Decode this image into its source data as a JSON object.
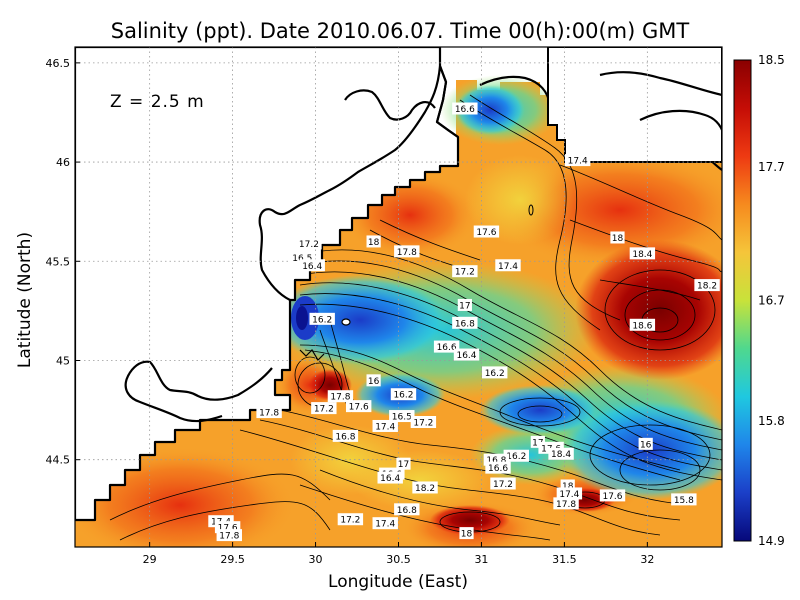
{
  "chart_data": {
    "type": "heatmap",
    "title": "Salinity (ppt). Date 2010.06.07. Time 00(h):00(m) GMT",
    "xlabel": "Longitude (East)",
    "ylabel": "Latitude (North)",
    "annotation": "Z = 2.5 m",
    "xlim": [
      28.55,
      32.45
    ],
    "ylim": [
      44.06,
      46.58
    ],
    "x_ticks": [
      "29",
      "29.5",
      "30",
      "30.5",
      "31",
      "31.5",
      "32"
    ],
    "x_tick_values": [
      29,
      29.5,
      30,
      30.5,
      31,
      31.5,
      32
    ],
    "y_ticks": [
      "44.5",
      "45",
      "45.5",
      "46",
      "46.5"
    ],
    "y_tick_values": [
      44.5,
      45,
      45.5,
      46,
      46.5
    ],
    "grid": true,
    "colorbar": {
      "ticks": [
        "18.5",
        "17.7",
        "16.7",
        "15.8",
        "14.9"
      ],
      "values": [
        18.5,
        17.7,
        16.7,
        15.8,
        14.9
      ],
      "colors": [
        "#8a0000",
        "#e11a10",
        "#f57a1a",
        "#f7c63a",
        "#d8e23a",
        "#7ddc5a",
        "#22d0c8",
        "#2a9aee",
        "#1b4fd0",
        "#06087a"
      ]
    },
    "contour_labels": [
      {
        "lon": 30.9,
        "lat": 46.27,
        "text": "16.6"
      },
      {
        "lon": 31.58,
        "lat": 46.01,
        "text": "17.4"
      },
      {
        "lon": 31.03,
        "lat": 45.65,
        "text": "17.6"
      },
      {
        "lon": 29.96,
        "lat": 45.59,
        "text": "17.2"
      },
      {
        "lon": 30.35,
        "lat": 45.6,
        "text": "18"
      },
      {
        "lon": 30.55,
        "lat": 45.55,
        "text": "17.8"
      },
      {
        "lon": 29.92,
        "lat": 45.52,
        "text": "16.5"
      },
      {
        "lon": 29.98,
        "lat": 45.48,
        "text": "16.4"
      },
      {
        "lon": 30.9,
        "lat": 45.45,
        "text": "17.2"
      },
      {
        "lon": 31.16,
        "lat": 45.48,
        "text": "17.4"
      },
      {
        "lon": 31.82,
        "lat": 45.62,
        "text": "18"
      },
      {
        "lon": 31.97,
        "lat": 45.54,
        "text": "18.4"
      },
      {
        "lon": 32.36,
        "lat": 45.38,
        "text": "18.2"
      },
      {
        "lon": 30.04,
        "lat": 45.21,
        "text": "16.2"
      },
      {
        "lon": 30.9,
        "lat": 45.28,
        "text": "17"
      },
      {
        "lon": 30.9,
        "lat": 45.19,
        "text": "16.8"
      },
      {
        "lon": 31.97,
        "lat": 45.18,
        "text": "18.6"
      },
      {
        "lon": 30.79,
        "lat": 45.07,
        "text": "16.6"
      },
      {
        "lon": 30.91,
        "lat": 45.03,
        "text": "16.4"
      },
      {
        "lon": 31.08,
        "lat": 44.94,
        "text": "16.2"
      },
      {
        "lon": 30.35,
        "lat": 44.9,
        "text": "16"
      },
      {
        "lon": 30.15,
        "lat": 44.82,
        "text": "17.8"
      },
      {
        "lon": 30.53,
        "lat": 44.83,
        "text": "16.2"
      },
      {
        "lon": 29.72,
        "lat": 44.74,
        "text": "17.8"
      },
      {
        "lon": 30.05,
        "lat": 44.76,
        "text": "17.2"
      },
      {
        "lon": 30.26,
        "lat": 44.77,
        "text": "17.6"
      },
      {
        "lon": 30.52,
        "lat": 44.72,
        "text": "16.5"
      },
      {
        "lon": 30.65,
        "lat": 44.69,
        "text": "17.2"
      },
      {
        "lon": 30.42,
        "lat": 44.67,
        "text": "17.4"
      },
      {
        "lon": 30.18,
        "lat": 44.62,
        "text": "16.8"
      },
      {
        "lon": 31.34,
        "lat": 44.59,
        "text": "17"
      },
      {
        "lon": 31.42,
        "lat": 44.56,
        "text": "17.6"
      },
      {
        "lon": 31.48,
        "lat": 44.53,
        "text": "18.4"
      },
      {
        "lon": 31.21,
        "lat": 44.52,
        "text": "16.2"
      },
      {
        "lon": 31.09,
        "lat": 44.5,
        "text": "16.8"
      },
      {
        "lon": 31.1,
        "lat": 44.46,
        "text": "16.6"
      },
      {
        "lon": 31.99,
        "lat": 44.58,
        "text": "16"
      },
      {
        "lon": 30.53,
        "lat": 44.48,
        "text": "17"
      },
      {
        "lon": 30.46,
        "lat": 44.43,
        "text": "16.6"
      },
      {
        "lon": 30.45,
        "lat": 44.41,
        "text": "16.4"
      },
      {
        "lon": 30.66,
        "lat": 44.36,
        "text": "18.2"
      },
      {
        "lon": 31.13,
        "lat": 44.38,
        "text": "17.2"
      },
      {
        "lon": 31.52,
        "lat": 44.37,
        "text": "18"
      },
      {
        "lon": 31.53,
        "lat": 44.33,
        "text": "17.4"
      },
      {
        "lon": 31.51,
        "lat": 44.28,
        "text": "17.8"
      },
      {
        "lon": 31.79,
        "lat": 44.32,
        "text": "17.6"
      },
      {
        "lon": 32.22,
        "lat": 44.3,
        "text": "15.8"
      },
      {
        "lon": 30.55,
        "lat": 44.25,
        "text": "16.8"
      },
      {
        "lon": 30.21,
        "lat": 44.2,
        "text": "17.2"
      },
      {
        "lon": 30.42,
        "lat": 44.18,
        "text": "17.4"
      },
      {
        "lon": 30.91,
        "lat": 44.13,
        "text": "18"
      },
      {
        "lon": 29.43,
        "lat": 44.19,
        "text": "17.4"
      },
      {
        "lon": 29.47,
        "lat": 44.16,
        "text": "17.6"
      },
      {
        "lon": 29.48,
        "lat": 44.12,
        "text": "17.8"
      }
    ]
  }
}
